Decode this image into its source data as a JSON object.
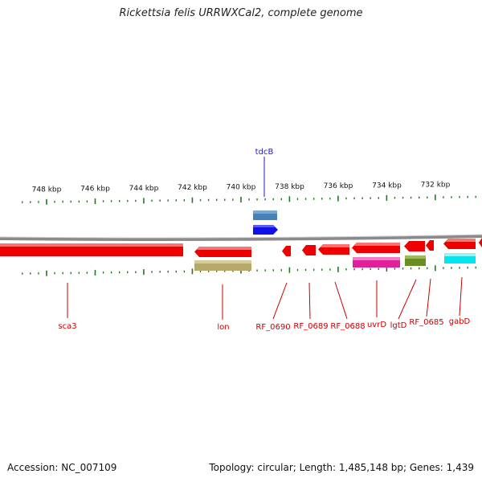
{
  "title": "Rickettsia felis URRWXCal2, complete genome",
  "footer": {
    "accession": "Accession: NC_007109",
    "topology": "Topology: circular; Length: 1,485,148 bp; Genes: 1,439"
  },
  "colors": {
    "backbone": "#8a8a8a",
    "tick": "#1f7a1f",
    "label_red": "#cc0000",
    "label_blue": "#1a1acc"
  },
  "ticks": [
    {
      "label": "748 kbp"
    },
    {
      "label": "746 kbp"
    },
    {
      "label": "744 kbp"
    },
    {
      "label": "742 kbp"
    },
    {
      "label": "740 kbp"
    },
    {
      "label": "738 kbp"
    },
    {
      "label": "736 kbp"
    },
    {
      "label": "734 kbp"
    },
    {
      "label": "732 kbp"
    }
  ],
  "top_features": [
    {
      "name": "tdcB",
      "color": "#1010e8"
    },
    {
      "name": "",
      "color": "#4682b4"
    }
  ],
  "gene_labels": [
    {
      "name": "sca3"
    },
    {
      "name": "lon"
    },
    {
      "name": "RF_0690"
    },
    {
      "name": "RF_0689"
    },
    {
      "name": "RF_0688"
    },
    {
      "name": "uvrD"
    },
    {
      "name": "lgtD"
    },
    {
      "name": "RF_0685"
    },
    {
      "name": "gabD"
    }
  ],
  "cog_colors": {
    "lon": "#b5a86a",
    "uvrD": "#e0209a",
    "lgtD": "#6b8e23",
    "gabD": "#00e5ee"
  }
}
